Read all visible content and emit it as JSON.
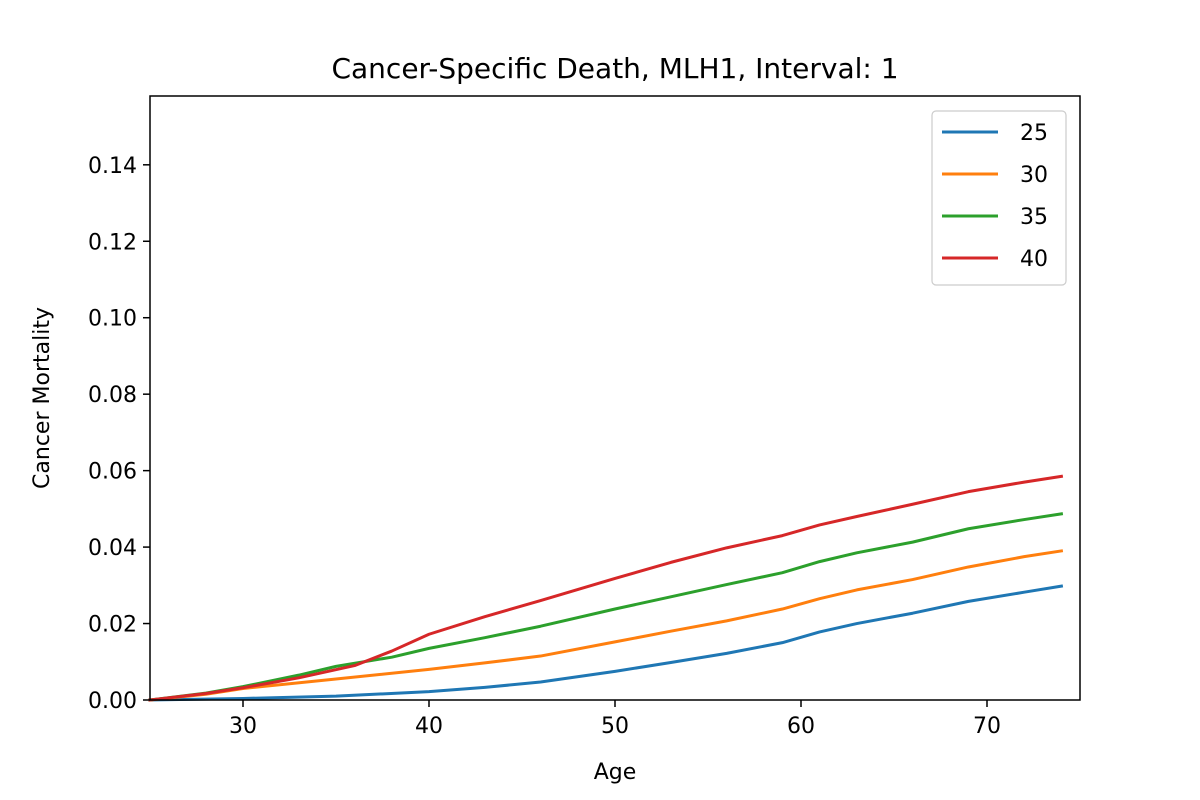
{
  "chart_data": {
    "type": "line",
    "title": "Cancer-Specific Death, MLH1, Interval: 1",
    "xlabel": "Age",
    "ylabel": "Cancer Mortality",
    "xlim": [
      25,
      75
    ],
    "ylim": [
      0,
      0.158
    ],
    "xticks": [
      30,
      40,
      50,
      60,
      70
    ],
    "yticks": [
      0.0,
      0.02,
      0.04,
      0.06,
      0.08,
      0.1,
      0.12,
      0.14
    ],
    "ytick_labels": [
      "0.00",
      "0.02",
      "0.04",
      "0.06",
      "0.08",
      "0.10",
      "0.12",
      "0.14"
    ],
    "xtick_labels": [
      "30",
      "40",
      "50",
      "60",
      "70"
    ],
    "grid": false,
    "legend_position": "top-right",
    "series": [
      {
        "name": "25",
        "color": "#1f77b4",
        "x": [
          25,
          30,
          35,
          40,
          43,
          46,
          50,
          53,
          56,
          59,
          61,
          63,
          66,
          69,
          72,
          74
        ],
        "y": [
          0.0,
          0.0004,
          0.001,
          0.0022,
          0.0033,
          0.0047,
          0.0075,
          0.0098,
          0.0122,
          0.015,
          0.0178,
          0.02,
          0.0227,
          0.0258,
          0.0282,
          0.0298
        ]
      },
      {
        "name": "30",
        "color": "#ff7f0e",
        "x": [
          25,
          28,
          30,
          35,
          40,
          43,
          46,
          50,
          53,
          56,
          59,
          61,
          63,
          66,
          69,
          72,
          74
        ],
        "y": [
          0.0,
          0.0015,
          0.003,
          0.0055,
          0.008,
          0.0097,
          0.0115,
          0.0152,
          0.018,
          0.0207,
          0.0238,
          0.0265,
          0.0288,
          0.0315,
          0.0348,
          0.0375,
          0.039
        ]
      },
      {
        "name": "35",
        "color": "#2ca02c",
        "x": [
          25,
          28,
          30,
          33,
          35,
          38,
          40,
          43,
          46,
          50,
          53,
          56,
          59,
          61,
          63,
          66,
          69,
          72,
          74
        ],
        "y": [
          0.0,
          0.0018,
          0.0035,
          0.0065,
          0.0088,
          0.0112,
          0.0135,
          0.0163,
          0.0193,
          0.0238,
          0.027,
          0.0302,
          0.0333,
          0.0362,
          0.0385,
          0.0413,
          0.0448,
          0.0472,
          0.0487
        ]
      },
      {
        "name": "40",
        "color": "#d62728",
        "x": [
          25,
          28,
          30,
          33,
          36,
          38,
          40,
          43,
          46,
          50,
          53,
          56,
          59,
          61,
          63,
          66,
          69,
          72,
          74
        ],
        "y": [
          0.0,
          0.0017,
          0.0032,
          0.0058,
          0.009,
          0.0128,
          0.0172,
          0.0218,
          0.026,
          0.0318,
          0.036,
          0.0398,
          0.043,
          0.0458,
          0.048,
          0.0512,
          0.0545,
          0.057,
          0.0585
        ]
      }
    ]
  }
}
